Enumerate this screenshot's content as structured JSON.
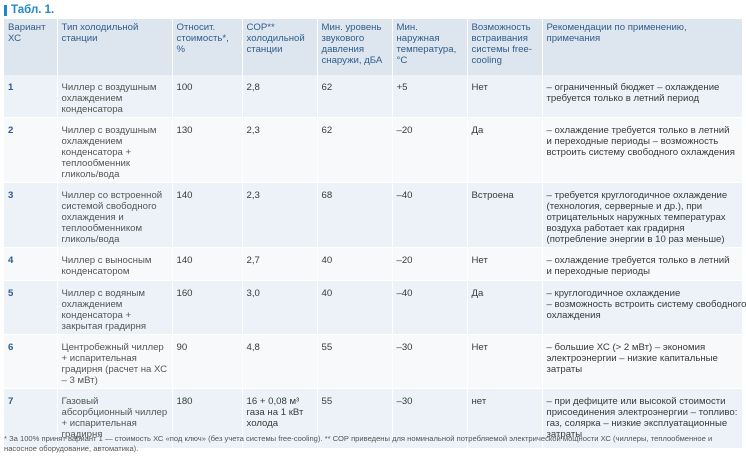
{
  "caption": "Табл. 1.",
  "headers": [
    "Вариант ХС",
    "Тип холодильной станции",
    "Относит. стоимость*, %",
    "COP** холодильной станции",
    "Мин. уровень звукового давления снаружи, дБА",
    "Мин. наружная температура, °С",
    "Возможность встраивания системы free-cooling",
    "Рекомендации по применению, примечания"
  ],
  "rows": [
    {
      "n": "1",
      "type": "Чиллер с воздушным охлаждением конденсатора",
      "cost": "100",
      "cop": "2,8",
      "noise": "62",
      "temp": "+5",
      "fc": "Нет",
      "rec": [
        "– ограниченный бюджет – охлаждение",
        "требуется только в летний период"
      ]
    },
    {
      "n": "2",
      "type": "Чиллер с воздушным охлаждением конденсатора + теплообменник гликоль/вода",
      "cost": "130",
      "cop": "2,3",
      "noise": "62",
      "temp": "–20",
      "fc": "Да",
      "rec": [
        "– охлаждение требуется только в летний",
        "и переходные периоды – возможность",
        "встроить систему свободного охлаждения"
      ]
    },
    {
      "n": "3",
      "type": "Чиллер со встроенной системой свободного охлаждения и теплообменником гликоль/вода",
      "cost": "140",
      "cop": "2,3",
      "noise": "68",
      "temp": "–40",
      "fc": "Встроена",
      "rec": [
        "– требуется круглогодичное охлаждение",
        "(технология, серверные и др.), при",
        "отрицательных наружных температурах",
        "воздуха работает как градирня",
        "(потребление энергии в 10 раз меньше)"
      ]
    },
    {
      "n": "4",
      "type": "Чиллер с выносным конденсатором",
      "cost": "140",
      "cop": "2,7",
      "noise": "40",
      "temp": "–20",
      "fc": "Нет",
      "rec": [
        "– охлаждение требуется только в летний",
        "и переходные периоды"
      ]
    },
    {
      "n": "5",
      "type": "Чиллер с водяным охлаждением конденсатора + закрытая градирня",
      "cost": "160",
      "cop": "3,0",
      "noise": "40",
      "temp": "–40",
      "fc": "Да",
      "rec": [
        "– круглогодичное охлаждение",
        "– возможность встроить систему свободного",
        "охлаждения"
      ]
    },
    {
      "n": "6",
      "type": "Центробежный чиллер + испарительная градирня (расчет на ХС – 3 мВт)",
      "cost": "90",
      "cop": "4,8",
      "noise": "55",
      "temp": "–30",
      "fc": "Нет",
      "rec": [
        "– большие ХС (> 2 мВт) – экономия",
        "электроэнергии – низкие капитальные",
        "затраты"
      ]
    },
    {
      "n": "7",
      "type": "Газовый абсорбционный чиллер + испарительная градирня",
      "cost": "180",
      "cop": "16 + 0,08 м³ газа на 1 кВт холода",
      "noise": "55",
      "temp": "–30",
      "fc": "нет",
      "rec": [
        "– при дефиците или высокой стоимости",
        "присоединения электроэнергии – топливо:",
        "газ, солярка – низкие эксплуатационные",
        "затраты"
      ]
    }
  ],
  "footnote": "* За 100% принят вариант 1 — стоимость ХС «под ключ» (без учета системы free-cooling).   ** СОР приведены для номинальной потребляемой электрической мощности ХС (чиллеры, теплообменное и насосное оборудование, автоматика)."
}
